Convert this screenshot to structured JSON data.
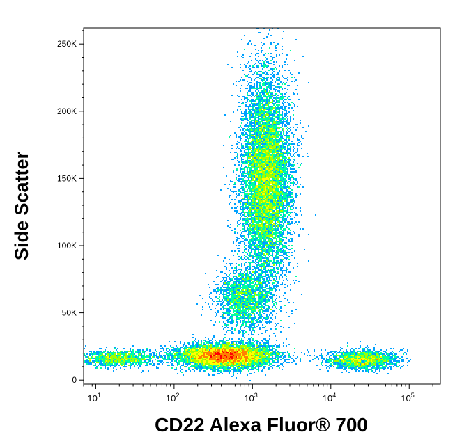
{
  "chart_data": {
    "type": "scatter",
    "subtype": "flow-cytometry-density-dot-plot",
    "xlabel": "CD22 Alexa Fluor® 700",
    "ylabel": "Side Scatter",
    "x_scale": "log",
    "xlim": [
      7,
      250000
    ],
    "ylim": [
      -3000,
      262000
    ],
    "x_ticks": [
      {
        "value": 10,
        "base": "10",
        "exp": "1"
      },
      {
        "value": 100,
        "base": "10",
        "exp": "2"
      },
      {
        "value": 1000,
        "base": "10",
        "exp": "3"
      },
      {
        "value": 10000,
        "base": "10",
        "exp": "4"
      },
      {
        "value": 100000,
        "base": "10",
        "exp": "5"
      }
    ],
    "y_ticks": [
      {
        "value": 0,
        "label": "0"
      },
      {
        "value": 50000,
        "label": "50K"
      },
      {
        "value": 100000,
        "label": "100K"
      },
      {
        "value": 150000,
        "label": "150K"
      },
      {
        "value": 200000,
        "label": "200K"
      },
      {
        "value": 250000,
        "label": "250K"
      }
    ],
    "populations": [
      {
        "x_center": 1500,
        "y_center": 150000,
        "x_spread_decades": 0.16,
        "y_spread": 38000,
        "relative_count": 0.4,
        "density": "high"
      },
      {
        "x_center": 800,
        "y_center": 60000,
        "x_spread_decades": 0.18,
        "y_spread": 12000,
        "relative_count": 0.08,
        "density": "medium"
      },
      {
        "x_center": 450,
        "y_center": 18000,
        "x_spread_decades": 0.3,
        "y_spread": 4500,
        "relative_count": 0.3,
        "density": "high"
      },
      {
        "x_center": 25000,
        "y_center": 15000,
        "x_spread_decades": 0.22,
        "y_spread": 3500,
        "relative_count": 0.07,
        "density": "medium"
      },
      {
        "x_center": 20,
        "y_center": 16000,
        "x_spread_decades": 0.25,
        "y_spread": 3000,
        "relative_count": 0.05,
        "density": "low"
      }
    ],
    "colormap": [
      "#0000ff",
      "#00a0ff",
      "#00ffa0",
      "#a0ff00",
      "#ffff00",
      "#ff8000",
      "#ff0000"
    ],
    "grid": false,
    "legend": "none"
  }
}
